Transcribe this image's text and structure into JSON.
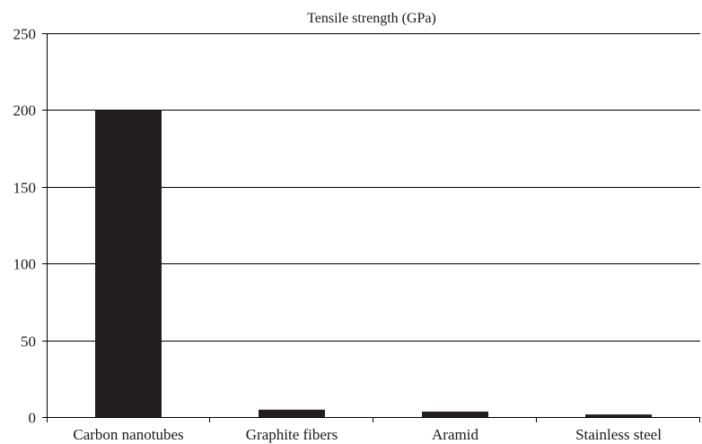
{
  "chart_data": {
    "type": "bar",
    "title": "Tensile strength (GPa)",
    "xlabel": "",
    "ylabel": "",
    "categories": [
      "Carbon nanotubes",
      "Graphite fibers",
      "Aramid",
      "Stainless steel"
    ],
    "values": [
      200,
      4.8,
      3.6,
      1.7
    ],
    "ylim": [
      0,
      250
    ],
    "yticks": [
      "0",
      "50",
      "100",
      "150",
      "200",
      "250"
    ],
    "grid": true,
    "legend": "none",
    "colors": {
      "bar": "#231f20",
      "axis": "#000000",
      "grid": "#000000",
      "text": "#1a1a1a"
    }
  }
}
